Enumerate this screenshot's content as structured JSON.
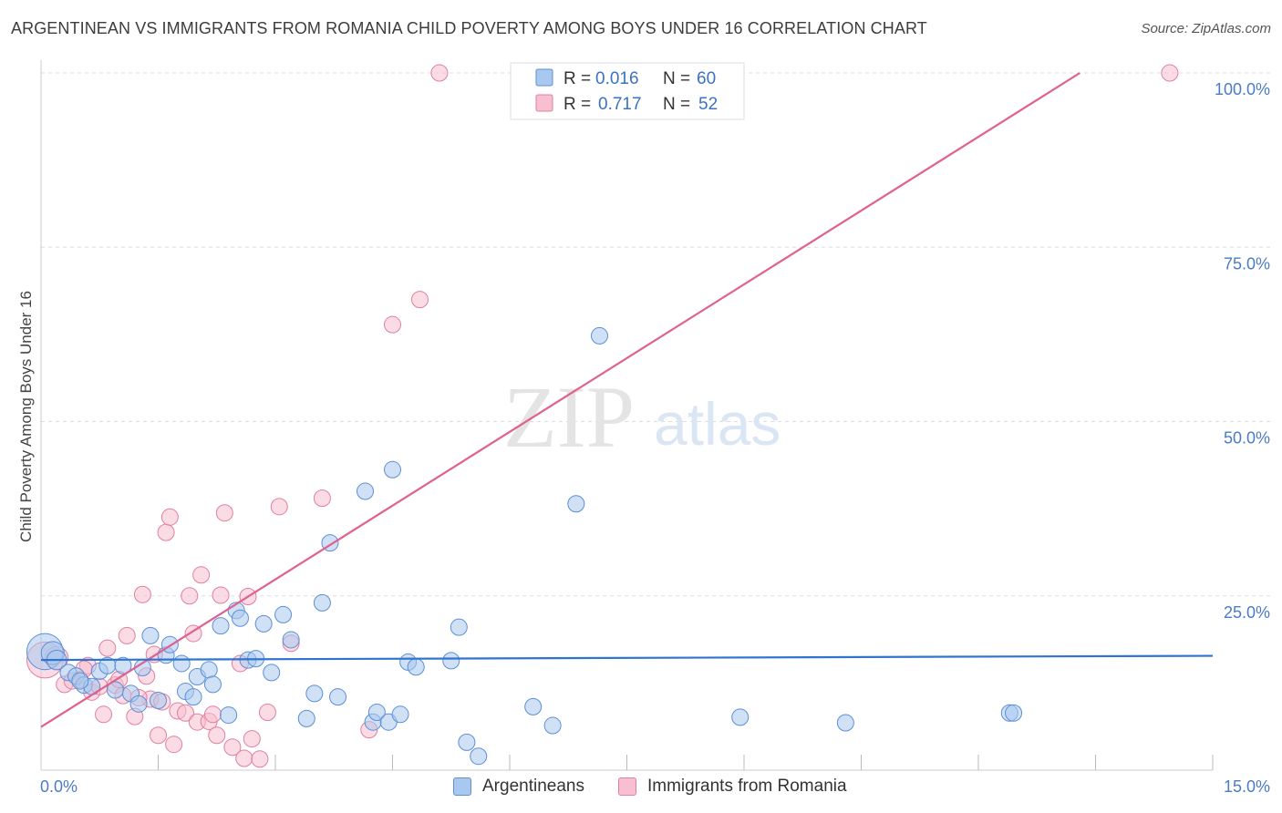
{
  "header": {
    "title": "ARGENTINEAN VS IMMIGRANTS FROM ROMANIA CHILD POVERTY AMONG BOYS UNDER 16 CORRELATION CHART",
    "source": "Source: ZipAtlas.com"
  },
  "watermark": {
    "zip": "ZIP",
    "atlas": "atlas"
  },
  "colors": {
    "blue_fill": "#a9c8ef",
    "blue_stroke": "#5b8fd6",
    "blue_line": "#2f74d0",
    "pink_fill": "#f7bfd0",
    "pink_stroke": "#e07fa0",
    "pink_line": "#e0608e",
    "grid": "#dddddd"
  },
  "legend": {
    "blue": {
      "r_label": "R = ",
      "r_value": "0.016",
      "n_label": "N = ",
      "n_value": "60"
    },
    "pink": {
      "r_label": "R = ",
      "r_value": "0.717",
      "n_label": "N = ",
      "n_value": "52"
    }
  },
  "bottom_legend": {
    "blue": "Argentineans",
    "pink": "Immigrants from Romania"
  },
  "chart_data": {
    "type": "scatter",
    "title": "ARGENTINEAN VS IMMIGRANTS FROM ROMANIA CHILD POVERTY AMONG BOYS UNDER 16 CORRELATION CHART",
    "xlabel": "",
    "ylabel": "Child Poverty Among Boys Under 16",
    "xlim": [
      0,
      15
    ],
    "ylim": [
      0,
      100
    ],
    "x_tick_labels": [
      {
        "value": 0,
        "label": "0.0%"
      },
      {
        "value": 15,
        "label": "15.0%"
      }
    ],
    "y_tick_labels": [
      {
        "value": 100,
        "label": "100.0%"
      },
      {
        "value": 75,
        "label": "75.0%"
      },
      {
        "value": 50,
        "label": "50.0%"
      },
      {
        "value": 25,
        "label": "25.0%"
      }
    ],
    "series": [
      {
        "name": "Argentineans",
        "color": "blue",
        "trend": {
          "x": [
            0,
            15
          ],
          "y": [
            15.8,
            16.4
          ]
        },
        "points": [
          [
            0.05,
            17.0,
            2.2
          ],
          [
            0.15,
            16.8,
            1.4
          ],
          [
            0.2,
            15.8,
            1.2
          ],
          [
            0.35,
            14.0,
            1.0
          ],
          [
            0.45,
            13.5,
            1.0
          ],
          [
            0.55,
            12.2,
            1.0
          ],
          [
            0.65,
            12.0,
            1.0
          ],
          [
            0.75,
            14.2,
            1.0
          ],
          [
            0.85,
            15.0,
            1.0
          ],
          [
            0.95,
            11.5,
            1.0
          ],
          [
            1.05,
            15.0,
            1.0
          ],
          [
            1.15,
            11.0,
            1.0
          ],
          [
            1.25,
            9.5,
            1.0
          ],
          [
            1.4,
            19.3,
            1.0
          ],
          [
            1.5,
            10.0,
            1.0
          ],
          [
            1.6,
            16.5,
            1.0
          ],
          [
            1.65,
            18.0,
            1.0
          ],
          [
            1.8,
            15.3,
            1.0
          ],
          [
            1.85,
            11.3,
            1.0
          ],
          [
            1.95,
            10.5,
            1.0
          ],
          [
            2.0,
            13.4,
            1.0
          ],
          [
            2.15,
            14.4,
            1.0
          ],
          [
            2.2,
            12.3,
            1.0
          ],
          [
            2.3,
            20.7,
            1.0
          ],
          [
            2.4,
            7.9,
            1.0
          ],
          [
            2.5,
            22.9,
            1.0
          ],
          [
            2.55,
            21.8,
            1.0
          ],
          [
            2.65,
            15.8,
            1.0
          ],
          [
            2.75,
            16.0,
            1.0
          ],
          [
            2.85,
            21.0,
            1.0
          ],
          [
            2.95,
            14.0,
            1.0
          ],
          [
            3.1,
            22.3,
            1.0
          ],
          [
            3.2,
            18.7,
            1.0
          ],
          [
            3.4,
            7.4,
            1.0
          ],
          [
            3.5,
            11.0,
            1.0
          ],
          [
            3.6,
            24.0,
            1.0
          ],
          [
            3.7,
            32.6,
            1.0
          ],
          [
            3.8,
            10.5,
            1.0
          ],
          [
            4.15,
            40.0,
            1.0
          ],
          [
            4.25,
            6.9,
            1.0
          ],
          [
            4.3,
            8.3,
            1.0
          ],
          [
            4.45,
            6.9,
            1.0
          ],
          [
            4.5,
            43.1,
            1.0
          ],
          [
            4.6,
            8.0,
            1.0
          ],
          [
            4.7,
            15.5,
            1.0
          ],
          [
            4.8,
            14.8,
            1.0
          ],
          [
            5.25,
            15.7,
            1.0
          ],
          [
            5.35,
            20.5,
            1.0
          ],
          [
            5.45,
            4.0,
            1.0
          ],
          [
            5.6,
            2.0,
            1.0
          ],
          [
            6.3,
            9.1,
            1.0
          ],
          [
            6.55,
            6.4,
            1.0
          ],
          [
            6.85,
            38.2,
            1.0
          ],
          [
            7.15,
            62.3,
            1.0
          ],
          [
            8.95,
            7.6,
            1.0
          ],
          [
            10.3,
            6.8,
            1.0
          ],
          [
            12.4,
            8.2,
            1.0
          ],
          [
            12.45,
            8.2,
            1.0
          ],
          [
            0.5,
            12.8,
            1.0
          ],
          [
            1.3,
            14.7,
            1.0
          ]
        ]
      },
      {
        "name": "Immigrants from Romania",
        "color": "pink",
        "trend": {
          "x": [
            0,
            13.3
          ],
          "y": [
            6.2,
            100
          ]
        },
        "points": [
          [
            0.05,
            15.8,
            2.2
          ],
          [
            0.2,
            16.1,
            1.4
          ],
          [
            0.3,
            12.3,
            1.0
          ],
          [
            0.4,
            12.8,
            1.0
          ],
          [
            0.5,
            13.0,
            1.0
          ],
          [
            0.6,
            15.0,
            1.0
          ],
          [
            0.65,
            11.2,
            1.0
          ],
          [
            0.75,
            12.0,
            1.0
          ],
          [
            0.8,
            8.0,
            1.0
          ],
          [
            0.85,
            17.5,
            1.0
          ],
          [
            0.95,
            12.2,
            1.0
          ],
          [
            1.05,
            10.7,
            1.0
          ],
          [
            1.1,
            19.3,
            1.0
          ],
          [
            1.2,
            7.7,
            1.0
          ],
          [
            1.3,
            25.2,
            1.0
          ],
          [
            1.35,
            13.5,
            1.0
          ],
          [
            1.4,
            10.2,
            1.0
          ],
          [
            1.45,
            16.6,
            1.0
          ],
          [
            1.5,
            5.0,
            1.0
          ],
          [
            1.55,
            9.8,
            1.0
          ],
          [
            1.6,
            34.1,
            1.0
          ],
          [
            1.65,
            36.3,
            1.0
          ],
          [
            1.7,
            3.7,
            1.0
          ],
          [
            1.75,
            8.5,
            1.0
          ],
          [
            1.85,
            8.2,
            1.0
          ],
          [
            1.9,
            25.0,
            1.0
          ],
          [
            1.95,
            19.6,
            1.0
          ],
          [
            2.0,
            6.9,
            1.0
          ],
          [
            2.05,
            28.0,
            1.0
          ],
          [
            2.15,
            7.0,
            1.0
          ],
          [
            2.2,
            8.0,
            1.0
          ],
          [
            2.25,
            5.0,
            1.0
          ],
          [
            2.3,
            25.1,
            1.0
          ],
          [
            2.35,
            36.9,
            1.0
          ],
          [
            2.45,
            3.3,
            1.0
          ],
          [
            2.55,
            15.3,
            1.0
          ],
          [
            2.6,
            1.7,
            1.0
          ],
          [
            2.65,
            24.9,
            1.0
          ],
          [
            2.8,
            1.6,
            1.0
          ],
          [
            2.9,
            8.3,
            1.0
          ],
          [
            3.05,
            37.8,
            1.0
          ],
          [
            3.2,
            18.2,
            1.0
          ],
          [
            3.6,
            39.0,
            1.0
          ],
          [
            4.2,
            5.8,
            1.0
          ],
          [
            4.5,
            63.9,
            1.0
          ],
          [
            4.85,
            67.5,
            1.0
          ],
          [
            5.1,
            100.0,
            1.0
          ],
          [
            14.45,
            100.0,
            1.0
          ],
          [
            0.55,
            14.5,
            1.0
          ],
          [
            1.0,
            13.0,
            1.0
          ],
          [
            1.25,
            10.4,
            1.0
          ],
          [
            2.7,
            4.5,
            1.0
          ]
        ]
      }
    ]
  }
}
